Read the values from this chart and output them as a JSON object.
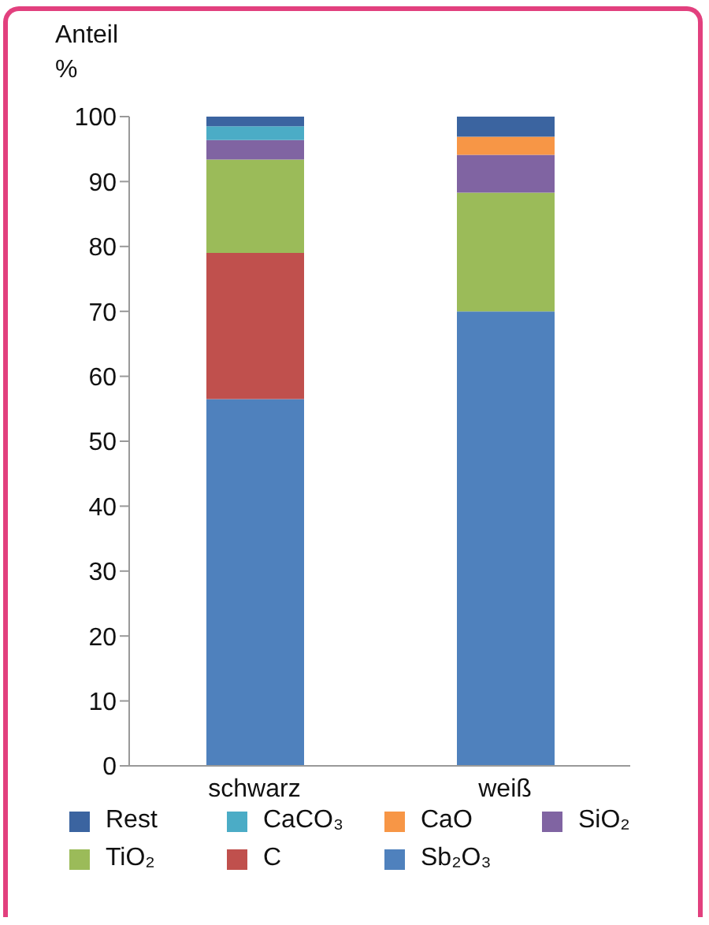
{
  "chart_data": {
    "type": "bar",
    "stacked": true,
    "ylabel": "Anteil\n%",
    "categories": [
      "schwarz",
      "weiß"
    ],
    "series": [
      {
        "name": "Sb₂O₃",
        "color": "#4f81bd",
        "values": [
          56.5,
          70
        ]
      },
      {
        "name": "C",
        "color": "#c0504d",
        "values": [
          22.5,
          0
        ]
      },
      {
        "name": "TiO₂",
        "color": "#9bbb59",
        "values": [
          14.4,
          18.3
        ]
      },
      {
        "name": "SiO₂",
        "color": "#8064a2",
        "values": [
          3,
          5.8
        ]
      },
      {
        "name": "CaO",
        "color": "#f79646",
        "values": [
          0,
          2.8
        ]
      },
      {
        "name": "CaCO₃",
        "color": "#4bacc6",
        "values": [
          2.1,
          0
        ]
      },
      {
        "name": "Rest",
        "color": "#3b64a0",
        "values": [
          1.5,
          3.1
        ]
      }
    ],
    "ylim": [
      0,
      100
    ],
    "yticks": [
      0,
      10,
      20,
      30,
      40,
      50,
      60,
      70,
      80,
      90,
      100
    ],
    "grid": false,
    "legend": "bottom"
  }
}
